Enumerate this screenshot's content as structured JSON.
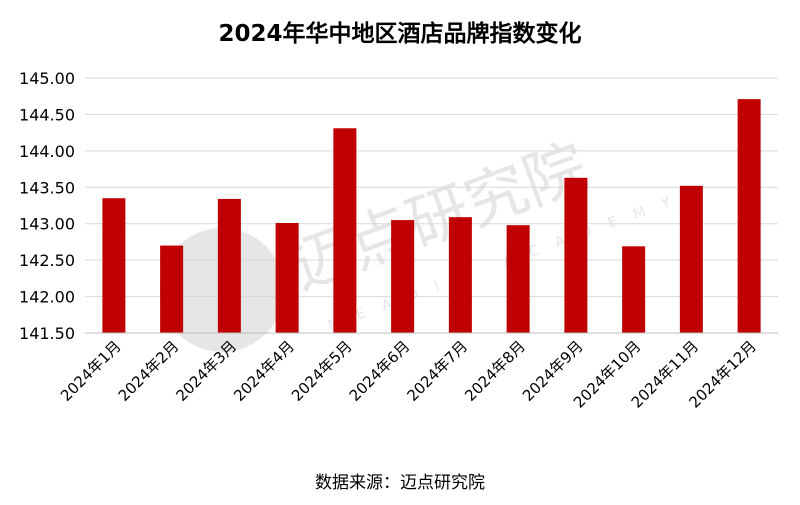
{
  "chart_data": {
    "type": "bar",
    "title": "2024年华中地区酒店品牌指数变化",
    "xlabel": "",
    "ylabel": "",
    "categories": [
      "2024年1月",
      "2024年2月",
      "2024年3月",
      "2024年4月",
      "2024年5月",
      "2024年6月",
      "2024年7月",
      "2024年8月",
      "2024年9月",
      "2024年10月",
      "2024年11月",
      "2024年12月"
    ],
    "values": [
      143.35,
      142.7,
      143.34,
      143.01,
      144.31,
      143.05,
      143.09,
      142.98,
      143.63,
      142.69,
      143.52,
      144.71
    ],
    "ylim": [
      141.5,
      145.0
    ],
    "yticks": [
      "145.00",
      "144.50",
      "144.00",
      "143.50",
      "143.00",
      "142.50",
      "142.00",
      "141.50"
    ],
    "grid": true,
    "legend": "none",
    "bar_color": "#c00000",
    "source": "数据来源：迈点研究院"
  },
  "watermark": {
    "text": "迈点研究院",
    "subtext": "MEADIN ACADEMY"
  }
}
